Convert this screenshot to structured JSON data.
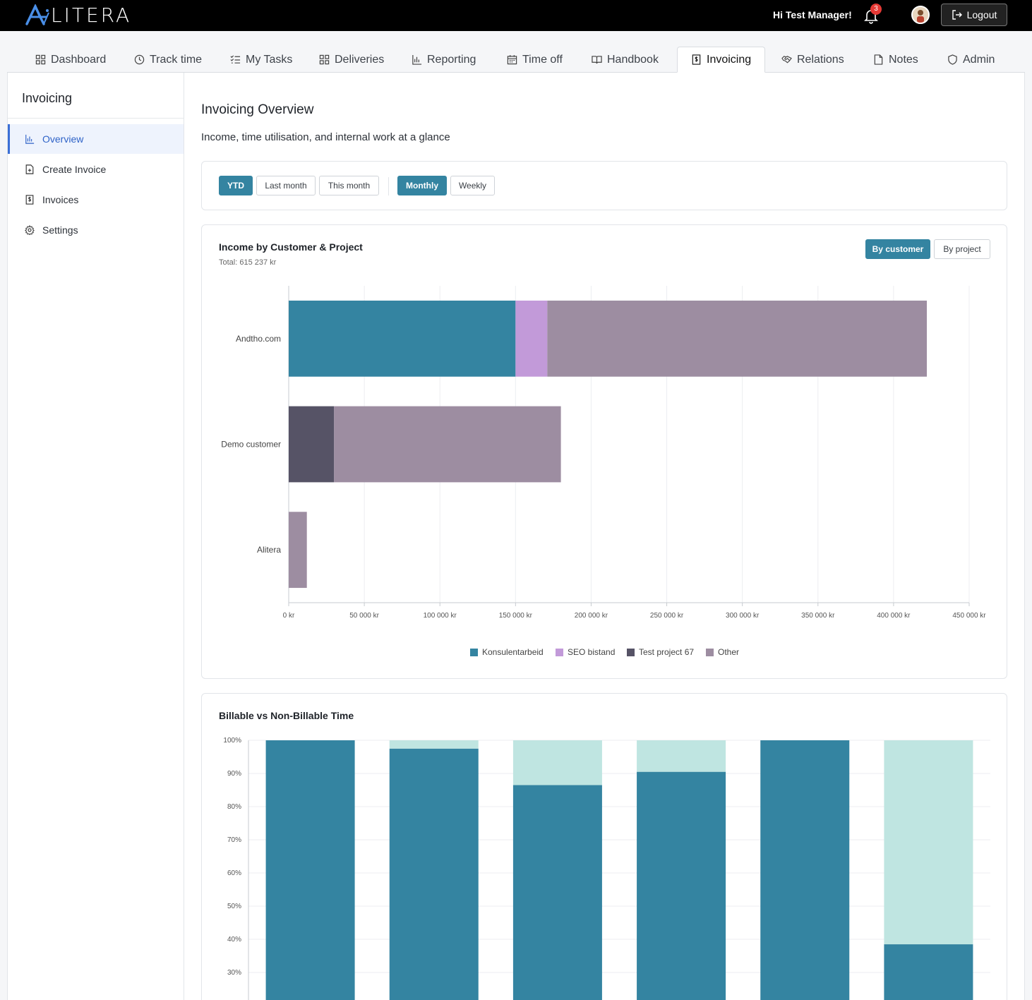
{
  "brand": {
    "logo_text": "LITERA"
  },
  "header": {
    "greeting": "Hi Test Manager!",
    "notification_count": "3",
    "logout_label": "Logout"
  },
  "tabs": [
    {
      "label": "Dashboard",
      "icon": "grid-icon"
    },
    {
      "label": "Track time",
      "icon": "clock-icon"
    },
    {
      "label": "My Tasks",
      "icon": "checklist-icon"
    },
    {
      "label": "Deliveries",
      "icon": "grid-icon"
    },
    {
      "label": "Reporting",
      "icon": "bar-chart-icon"
    },
    {
      "label": "Time off",
      "icon": "calendar-icon"
    },
    {
      "label": "Handbook",
      "icon": "book-icon"
    },
    {
      "label": "Invoicing",
      "icon": "invoice-icon",
      "active": true
    },
    {
      "label": "Relations",
      "icon": "handshake-icon"
    },
    {
      "label": "Notes",
      "icon": "note-icon"
    },
    {
      "label": "Admin",
      "icon": "shield-icon"
    }
  ],
  "sidebar": {
    "title": "Invoicing",
    "items": [
      {
        "label": "Overview",
        "icon": "bar-chart-icon",
        "active": true
      },
      {
        "label": "Create Invoice",
        "icon": "file-plus-icon"
      },
      {
        "label": "Invoices",
        "icon": "invoice-icon"
      },
      {
        "label": "Settings",
        "icon": "gear-icon"
      }
    ]
  },
  "main": {
    "title": "Invoicing Overview",
    "subtitle": "Income, time utilisation, and internal work at a glance"
  },
  "filters": {
    "period": [
      "YTD",
      "Last month",
      "This month"
    ],
    "period_selected": "YTD",
    "granularity": [
      "Monthly",
      "Weekly"
    ],
    "granularity_selected": "Monthly"
  },
  "income_card": {
    "title": "Income by Customer & Project",
    "total": "Total: 615 237 kr",
    "toggle": [
      "By customer",
      "By project"
    ],
    "toggle_selected": "By customer"
  },
  "billable_card": {
    "title": "Billable vs Non-Billable Time"
  },
  "chart_data": [
    {
      "type": "bar",
      "orientation": "horizontal",
      "stacked": true,
      "title": "Income by Customer & Project",
      "categories": [
        "Andtho.com",
        "Demo customer",
        "Alitera"
      ],
      "series": [
        {
          "name": "Konsulentarbeid",
          "color": "#3484a1",
          "values": [
            150000,
            0,
            0
          ]
        },
        {
          "name": "SEO bistand",
          "color": "#c29ad9",
          "values": [
            21000,
            0,
            0
          ]
        },
        {
          "name": "Test project 67",
          "color": "#565366",
          "values": [
            0,
            30000,
            0
          ]
        },
        {
          "name": "Other",
          "color": "#9d8da1",
          "values": [
            251000,
            150000,
            12000
          ]
        }
      ],
      "xlim": [
        0,
        450000
      ],
      "x_ticks": [
        "0 kr",
        "50 000 kr",
        "100 000 kr",
        "150 000 kr",
        "200 000 kr",
        "250 000 kr",
        "300 000 kr",
        "350 000 kr",
        "400 000 kr",
        "450 000 kr"
      ],
      "legend": "bottom",
      "grid": true
    },
    {
      "type": "bar",
      "stacked": true,
      "title": "Billable vs Non-Billable Time",
      "categories": [
        "",
        "",
        "",
        "",
        "",
        ""
      ],
      "series": [
        {
          "color": "#3484a1",
          "values": [
            100,
            97.5,
            86.5,
            90.5,
            100,
            38.5
          ]
        },
        {
          "color": "#bfe5e1",
          "values": [
            0,
            2.5,
            13.5,
            9.5,
            0,
            61.5
          ]
        }
      ],
      "y_ticks": [
        "100%",
        "90%",
        "80%",
        "70%",
        "60%",
        "50%",
        "40%",
        "30%"
      ],
      "ylim": [
        0,
        100
      ],
      "grid": true
    }
  ]
}
